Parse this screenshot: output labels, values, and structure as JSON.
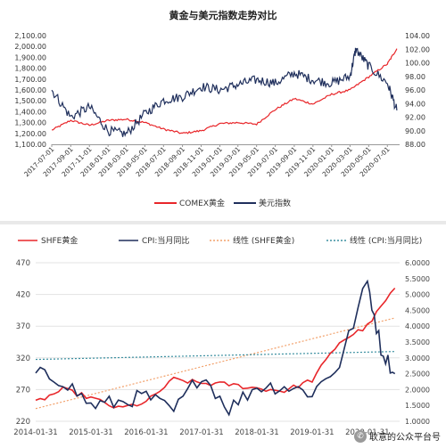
{
  "chart_data": [
    {
      "type": "line",
      "title": "黄金与美元指数走势对比",
      "legend_position": "bottom",
      "grid": false,
      "y_left": {
        "ylim": [
          1100,
          2100
        ],
        "ticks": [
          "1,100.00",
          "1,200.00",
          "1,300.00",
          "1,400.00",
          "1,500.00",
          "1,600.00",
          "1,700.00",
          "1,800.00",
          "1,900.00",
          "2,000.00",
          "2,100.00"
        ]
      },
      "y_right": {
        "ylim": [
          88,
          104
        ],
        "ticks": [
          "88.00",
          "90.00",
          "92.00",
          "94.00",
          "96.00",
          "98.00",
          "100.00",
          "102.00",
          "104.00"
        ]
      },
      "x_ticks": [
        "2017-07-01",
        "2017-09-01",
        "2017-11-01",
        "2018-01-01",
        "2018-03-01",
        "2018-05-01",
        "2018-07-01",
        "2018-09-01",
        "2018-11-01",
        "2019-01-01",
        "2019-03-01",
        "2019-05-01",
        "2019-07-01",
        "2019-09-01",
        "2019-11-01",
        "2020-01-01",
        "2020-03-01",
        "2020-05-01",
        "2020-07-01"
      ],
      "series": [
        {
          "name": "COMEX黄金",
          "color": "#e8262a",
          "axis": "left",
          "x": [
            "2017-07-01",
            "2017-09-01",
            "2017-11-01",
            "2018-01-01",
            "2018-03-01",
            "2018-05-01",
            "2018-07-01",
            "2018-09-01",
            "2018-11-01",
            "2019-01-01",
            "2019-03-01",
            "2019-05-01",
            "2019-07-01",
            "2019-09-01",
            "2019-11-01",
            "2020-01-01",
            "2020-03-01",
            "2020-05-01",
            "2020-07-01",
            "2020-08-01"
          ],
          "values": [
            1230,
            1320,
            1275,
            1320,
            1330,
            1300,
            1240,
            1200,
            1225,
            1290,
            1300,
            1285,
            1420,
            1520,
            1470,
            1560,
            1600,
            1720,
            1840,
            1980
          ]
        },
        {
          "name": "美元指数",
          "color": "#1f2f5c",
          "axis": "right",
          "x": [
            "2017-07-01",
            "2017-09-01",
            "2017-11-01",
            "2018-01-01",
            "2018-03-01",
            "2018-05-01",
            "2018-07-01",
            "2018-09-01",
            "2018-11-01",
            "2019-01-01",
            "2019-03-01",
            "2019-05-01",
            "2019-07-01",
            "2019-09-01",
            "2019-11-01",
            "2020-01-01",
            "2020-03-01",
            "2020-03-20",
            "2020-05-01",
            "2020-07-01",
            "2020-08-01"
          ],
          "values": [
            96,
            92,
            93.5,
            90,
            89.5,
            92.5,
            94.5,
            95,
            96.5,
            96,
            96.8,
            97.5,
            97,
            98.5,
            97.5,
            97,
            98,
            102,
            99.5,
            97,
            93
          ]
        }
      ]
    },
    {
      "type": "line",
      "legend_position": "top",
      "grid": true,
      "y_left": {
        "ylim": [
          220,
          470
        ],
        "ticks": [
          "220",
          "270",
          "320",
          "370",
          "420",
          "470"
        ]
      },
      "y_right": {
        "ylim": [
          1.0,
          6.0
        ],
        "ticks": [
          "1.0000",
          "1.5000",
          "2.0000",
          "2.5000",
          "3.0000",
          "3.5000",
          "4.0000",
          "4.5000",
          "5.0000",
          "5.5000",
          "6.0000"
        ]
      },
      "x_ticks": [
        "2014-01-31",
        "2015-01-31",
        "2016-01-31",
        "2017-01-31",
        "2018-01-31",
        "2019-01-31",
        "2020-01-31"
      ],
      "series": [
        {
          "name": "SHFE黄金",
          "color": "#e8262a",
          "axis": "left",
          "x": [
            "2014-01-31",
            "2014-07-31",
            "2015-01-31",
            "2015-07-31",
            "2016-01-31",
            "2016-07-31",
            "2017-01-31",
            "2017-07-31",
            "2018-01-31",
            "2018-07-31",
            "2019-01-31",
            "2019-07-31",
            "2020-01-31",
            "2020-07-31"
          ],
          "values": [
            250,
            270,
            257,
            240,
            250,
            286,
            280,
            278,
            272,
            268,
            285,
            345,
            370,
            430
          ]
        },
        {
          "name": "CPI:当月同比",
          "color": "#1f2f5c",
          "axis": "right",
          "x": [
            "2014-01-31",
            "2014-07-31",
            "2015-01-31",
            "2015-07-31",
            "2016-01-31",
            "2016-07-31",
            "2017-01-31",
            "2017-07-31",
            "2018-01-31",
            "2018-07-31",
            "2019-01-31",
            "2019-07-31",
            "2020-01-31",
            "2020-04-30",
            "2020-07-31"
          ],
          "values": [
            2.5,
            2.3,
            1.5,
            1.6,
            1.8,
            1.3,
            2.5,
            1.4,
            2.1,
            2.1,
            1.9,
            2.8,
            5.4,
            3.3,
            2.5
          ]
        },
        {
          "name": "线性 (SHFE黄金)",
          "color": "#f2a06a",
          "axis": "left",
          "dashed": true,
          "x": [
            "2014-01-31",
            "2020-07-31"
          ],
          "values": [
            240,
            383
          ]
        },
        {
          "name": "线性 (CPI:当月同比)",
          "color": "#3a8fa0",
          "axis": "right",
          "dashed": true,
          "x": [
            "2014-01-31",
            "2020-07-31"
          ],
          "values": [
            2.95,
            3.2
          ]
        }
      ]
    }
  ],
  "watermark": {
    "icon": "wechat-icon",
    "text": "耿意的公众平台号"
  }
}
